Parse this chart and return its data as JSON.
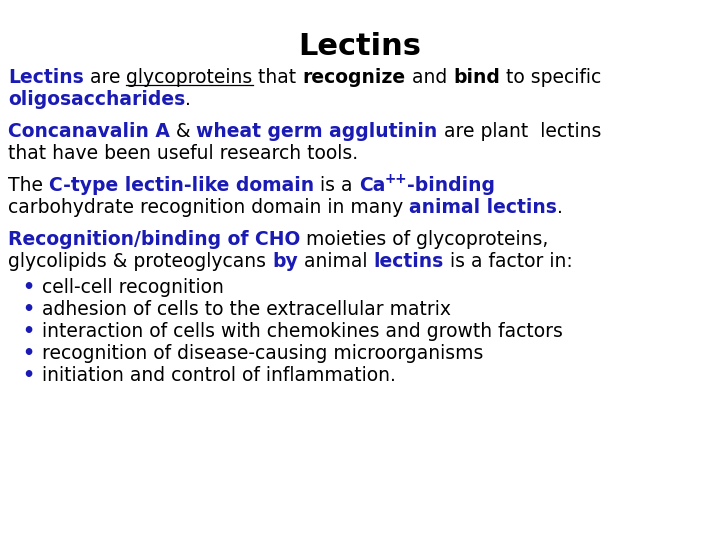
{
  "title": "Lectins",
  "background_color": "#ffffff",
  "blue_color": "#1a1ab5",
  "black_color": "#000000",
  "title_fontsize": 22,
  "body_fontsize": 13.5,
  "bullet_items": [
    "cell-cell recognition",
    "adhesion of cells to the extracellular matrix",
    "interaction of cells with chemokines and growth factors",
    "recognition of disease-causing microorganisms",
    "initiation and control of inflammation."
  ]
}
